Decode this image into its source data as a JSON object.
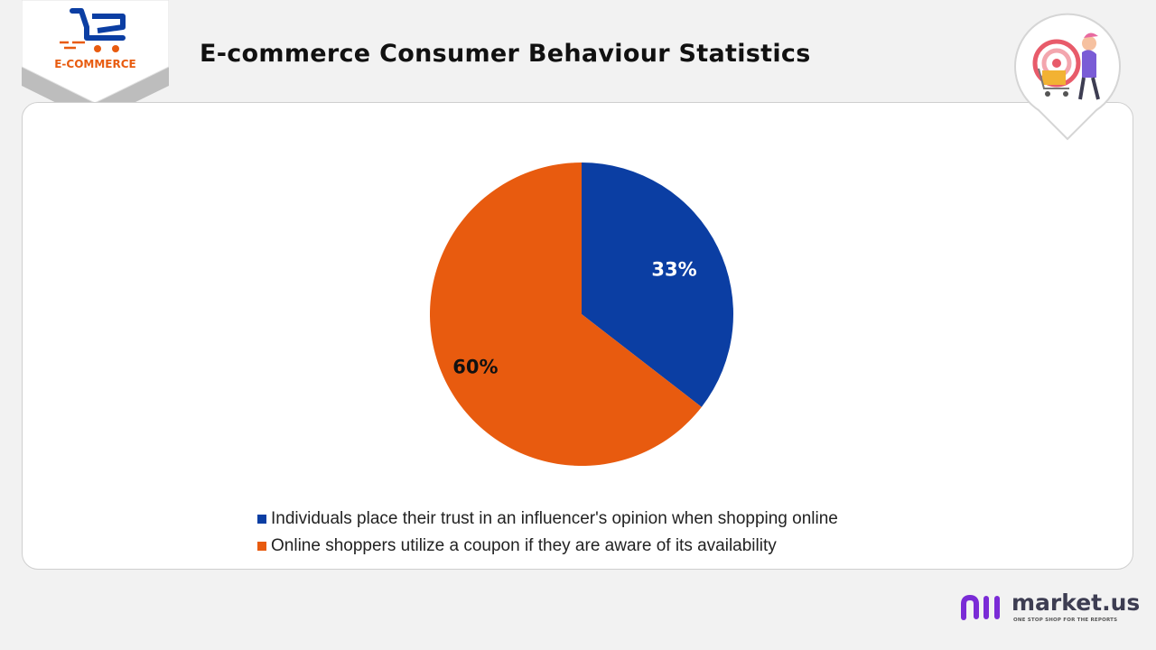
{
  "header": {
    "logo_text": "E-COMMERCE",
    "title": "E-commerce Consumer Behaviour Statistics"
  },
  "colors": {
    "blue": "#0b3ea3",
    "orange": "#e85b0f",
    "brand_purple": "#7a2bd6"
  },
  "icons": [
    "shopping-cart-icon",
    "target-shopper-pin-icon",
    "market-us-logo-icon"
  ],
  "chart_data": {
    "type": "pie",
    "title": "",
    "series": [
      {
        "name": "Individuals place their trust in an influencer's opinion when shopping online",
        "value": 33,
        "label": "33%",
        "color": "#0b3ea3",
        "label_color": "#ffffff"
      },
      {
        "name": "Online shoppers utilize a coupon if they are aware of its availability",
        "value": 60,
        "label": "60%",
        "color": "#e85b0f",
        "label_color": "#111111"
      }
    ],
    "legend_position": "bottom"
  },
  "brand": {
    "name": "market.us",
    "tagline": "ONE STOP SHOP FOR THE REPORTS"
  }
}
